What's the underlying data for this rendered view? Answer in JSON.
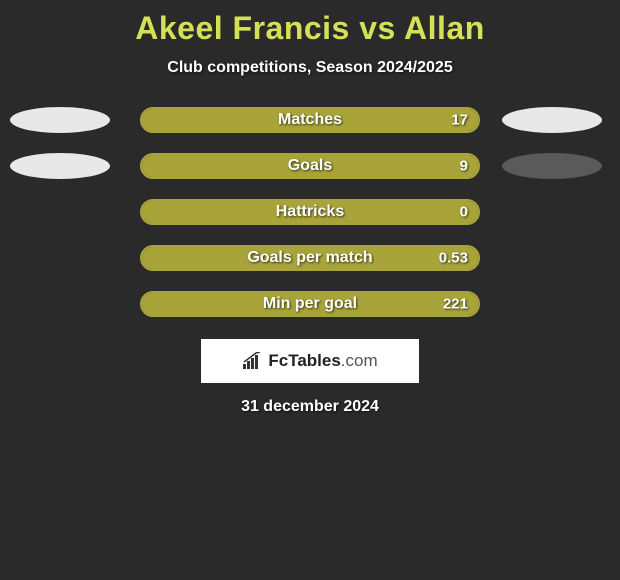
{
  "title": "Akeel Francis vs Allan",
  "subtitle": "Club competitions, Season 2024/2025",
  "date": "31 december 2024",
  "logo": {
    "brand_bold": "FcTables",
    "brand_light": ".com",
    "bar_color": "#333333"
  },
  "colors": {
    "background": "#2a2a2a",
    "accent": "#a8a43a",
    "title": "#d4e157",
    "ellipse_white": "#e8e8e8",
    "ellipse_dark": "#5a5a5a",
    "text": "#ffffff"
  },
  "rows": [
    {
      "label": "Matches",
      "value_right": "17",
      "fill_pct": 100,
      "left_ellipse_color": "#e8e8e8",
      "right_ellipse_color": "#e8e8e8",
      "show_ellipses": true
    },
    {
      "label": "Goals",
      "value_right": "9",
      "fill_pct": 100,
      "left_ellipse_color": "#e8e8e8",
      "right_ellipse_color": "#5a5a5a",
      "show_ellipses": true
    },
    {
      "label": "Hattricks",
      "value_right": "0",
      "fill_pct": 100,
      "show_ellipses": false
    },
    {
      "label": "Goals per match",
      "value_right": "0.53",
      "fill_pct": 100,
      "show_ellipses": false
    },
    {
      "label": "Min per goal",
      "value_right": "221",
      "fill_pct": 100,
      "show_ellipses": false
    }
  ]
}
